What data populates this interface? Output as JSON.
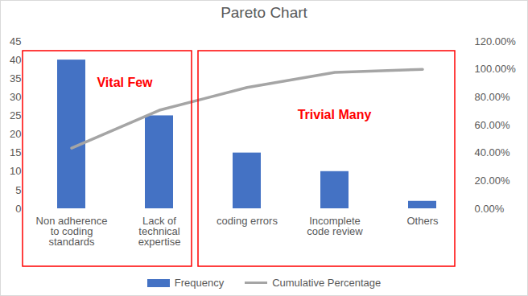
{
  "chart_data": {
    "type": "bar",
    "title": "Pareto Chart",
    "categories": [
      "Non adherence to coding standards",
      "Lack of technical expertise",
      "coding errors",
      "Incomplete code review",
      "Others"
    ],
    "series": [
      {
        "name": "Frequency",
        "type": "bar",
        "color": "#4472c4",
        "values": [
          40,
          25,
          15,
          10,
          2
        ]
      },
      {
        "name": "Cumulative Percentage",
        "type": "line",
        "color": "#a5a5a5",
        "axis": "y2",
        "values": [
          43.48,
          70.65,
          86.96,
          97.83,
          100
        ]
      }
    ],
    "ylim": [
      0,
      45
    ],
    "yticks": [
      0,
      5,
      10,
      15,
      20,
      25,
      30,
      35,
      40,
      45
    ],
    "y2lim": [
      0,
      120
    ],
    "y2ticks": [
      {
        "value": 0,
        "label": "0.00%"
      },
      {
        "value": 20,
        "label": "20.00%"
      },
      {
        "value": 40,
        "label": "40.00%"
      },
      {
        "value": 60,
        "label": "60.00%"
      },
      {
        "value": 80,
        "label": "80.00%"
      },
      {
        "value": 100,
        "label": "100.00%"
      },
      {
        "value": 120,
        "label": "120.00%"
      }
    ],
    "grid": false,
    "legend": "bottom",
    "annotations": [
      {
        "text": "Vital Few",
        "color": "#ff0000",
        "categories": [
          "Non adherence to coding standards",
          "Lack of technical expertise"
        ]
      },
      {
        "text": "Trivial Many",
        "color": "#ff0000",
        "categories": [
          "coding errors",
          "Incomplete code review",
          "Others"
        ]
      }
    ]
  }
}
